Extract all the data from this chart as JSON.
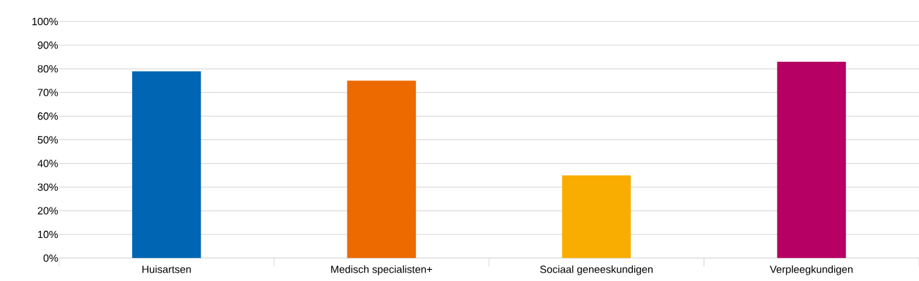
{
  "chart_data": {
    "type": "bar",
    "categories": [
      "Huisartsen",
      "Medisch specialisten+",
      "Sociaal geneeskundigen",
      "Verpleegkundigen"
    ],
    "values": [
      79,
      75,
      35,
      83
    ],
    "colors": [
      "#0066b3",
      "#ec6a00",
      "#f8ad00",
      "#b70063"
    ],
    "ylim": [
      0,
      100
    ],
    "yticks": [
      {
        "value": 0,
        "label": "0%"
      },
      {
        "value": 10,
        "label": "10%"
      },
      {
        "value": 20,
        "label": "20%"
      },
      {
        "value": 30,
        "label": "30%"
      },
      {
        "value": 40,
        "label": "40%"
      },
      {
        "value": 50,
        "label": "50%"
      },
      {
        "value": 60,
        "label": "60%"
      },
      {
        "value": 70,
        "label": "70%"
      },
      {
        "value": 80,
        "label": "80%"
      },
      {
        "value": 90,
        "label": "90%"
      },
      {
        "value": 100,
        "label": "100%"
      }
    ],
    "grid": "y"
  }
}
